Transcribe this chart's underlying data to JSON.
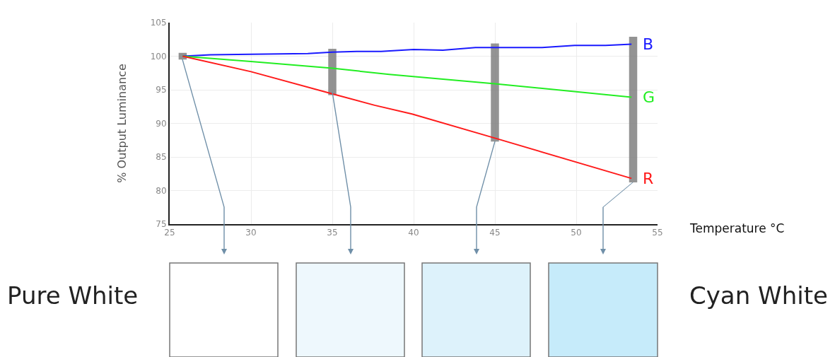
{
  "chart_data": {
    "type": "line",
    "xlabel": "Temperature °C",
    "ylabel": "% Output Luminance",
    "xlim": [
      25,
      55
    ],
    "xticks": [
      25,
      30,
      35,
      40,
      45,
      50,
      55
    ],
    "ylim": [
      75,
      105
    ],
    "yticks": [
      75,
      80,
      85,
      90,
      95,
      100,
      105
    ],
    "grid": true,
    "series": [
      {
        "type": "bar",
        "color": "#808080",
        "x": [
          25.8,
          35,
          45,
          53.5
        ],
        "base": [
          99.5,
          94.2,
          87.3,
          81.2
        ],
        "values": [
          1.0,
          6.9,
          14.6,
          21.7
        ]
      },
      {
        "name": "B",
        "color": "#1a1aff",
        "x": [
          25.8,
          27.5,
          30,
          33.5,
          35,
          36.5,
          38,
          40,
          41.8,
          43.8,
          45,
          47.9,
          49.9,
          51.8,
          53.4
        ],
        "values": [
          100,
          100.2,
          100.3,
          100.4,
          100.6,
          100.7,
          100.7,
          101.0,
          100.9,
          101.3,
          101.3,
          101.3,
          101.6,
          101.6,
          101.8
        ]
      },
      {
        "name": "G",
        "color": "#22ee22",
        "x": [
          25.8,
          30,
          35,
          38.5,
          45,
          53.4
        ],
        "values": [
          100,
          99.2,
          98.2,
          97.3,
          95.9,
          93.9
        ]
      },
      {
        "name": "R",
        "color": "#ff1a1a",
        "x": [
          25.8,
          30,
          35,
          37.6,
          39.9,
          45,
          53.4
        ],
        "values": [
          100,
          97.7,
          94.4,
          92.7,
          91.4,
          87.8,
          81.8
        ]
      }
    ],
    "annotations": [
      "Pure White",
      "Cyan White"
    ]
  }
}
